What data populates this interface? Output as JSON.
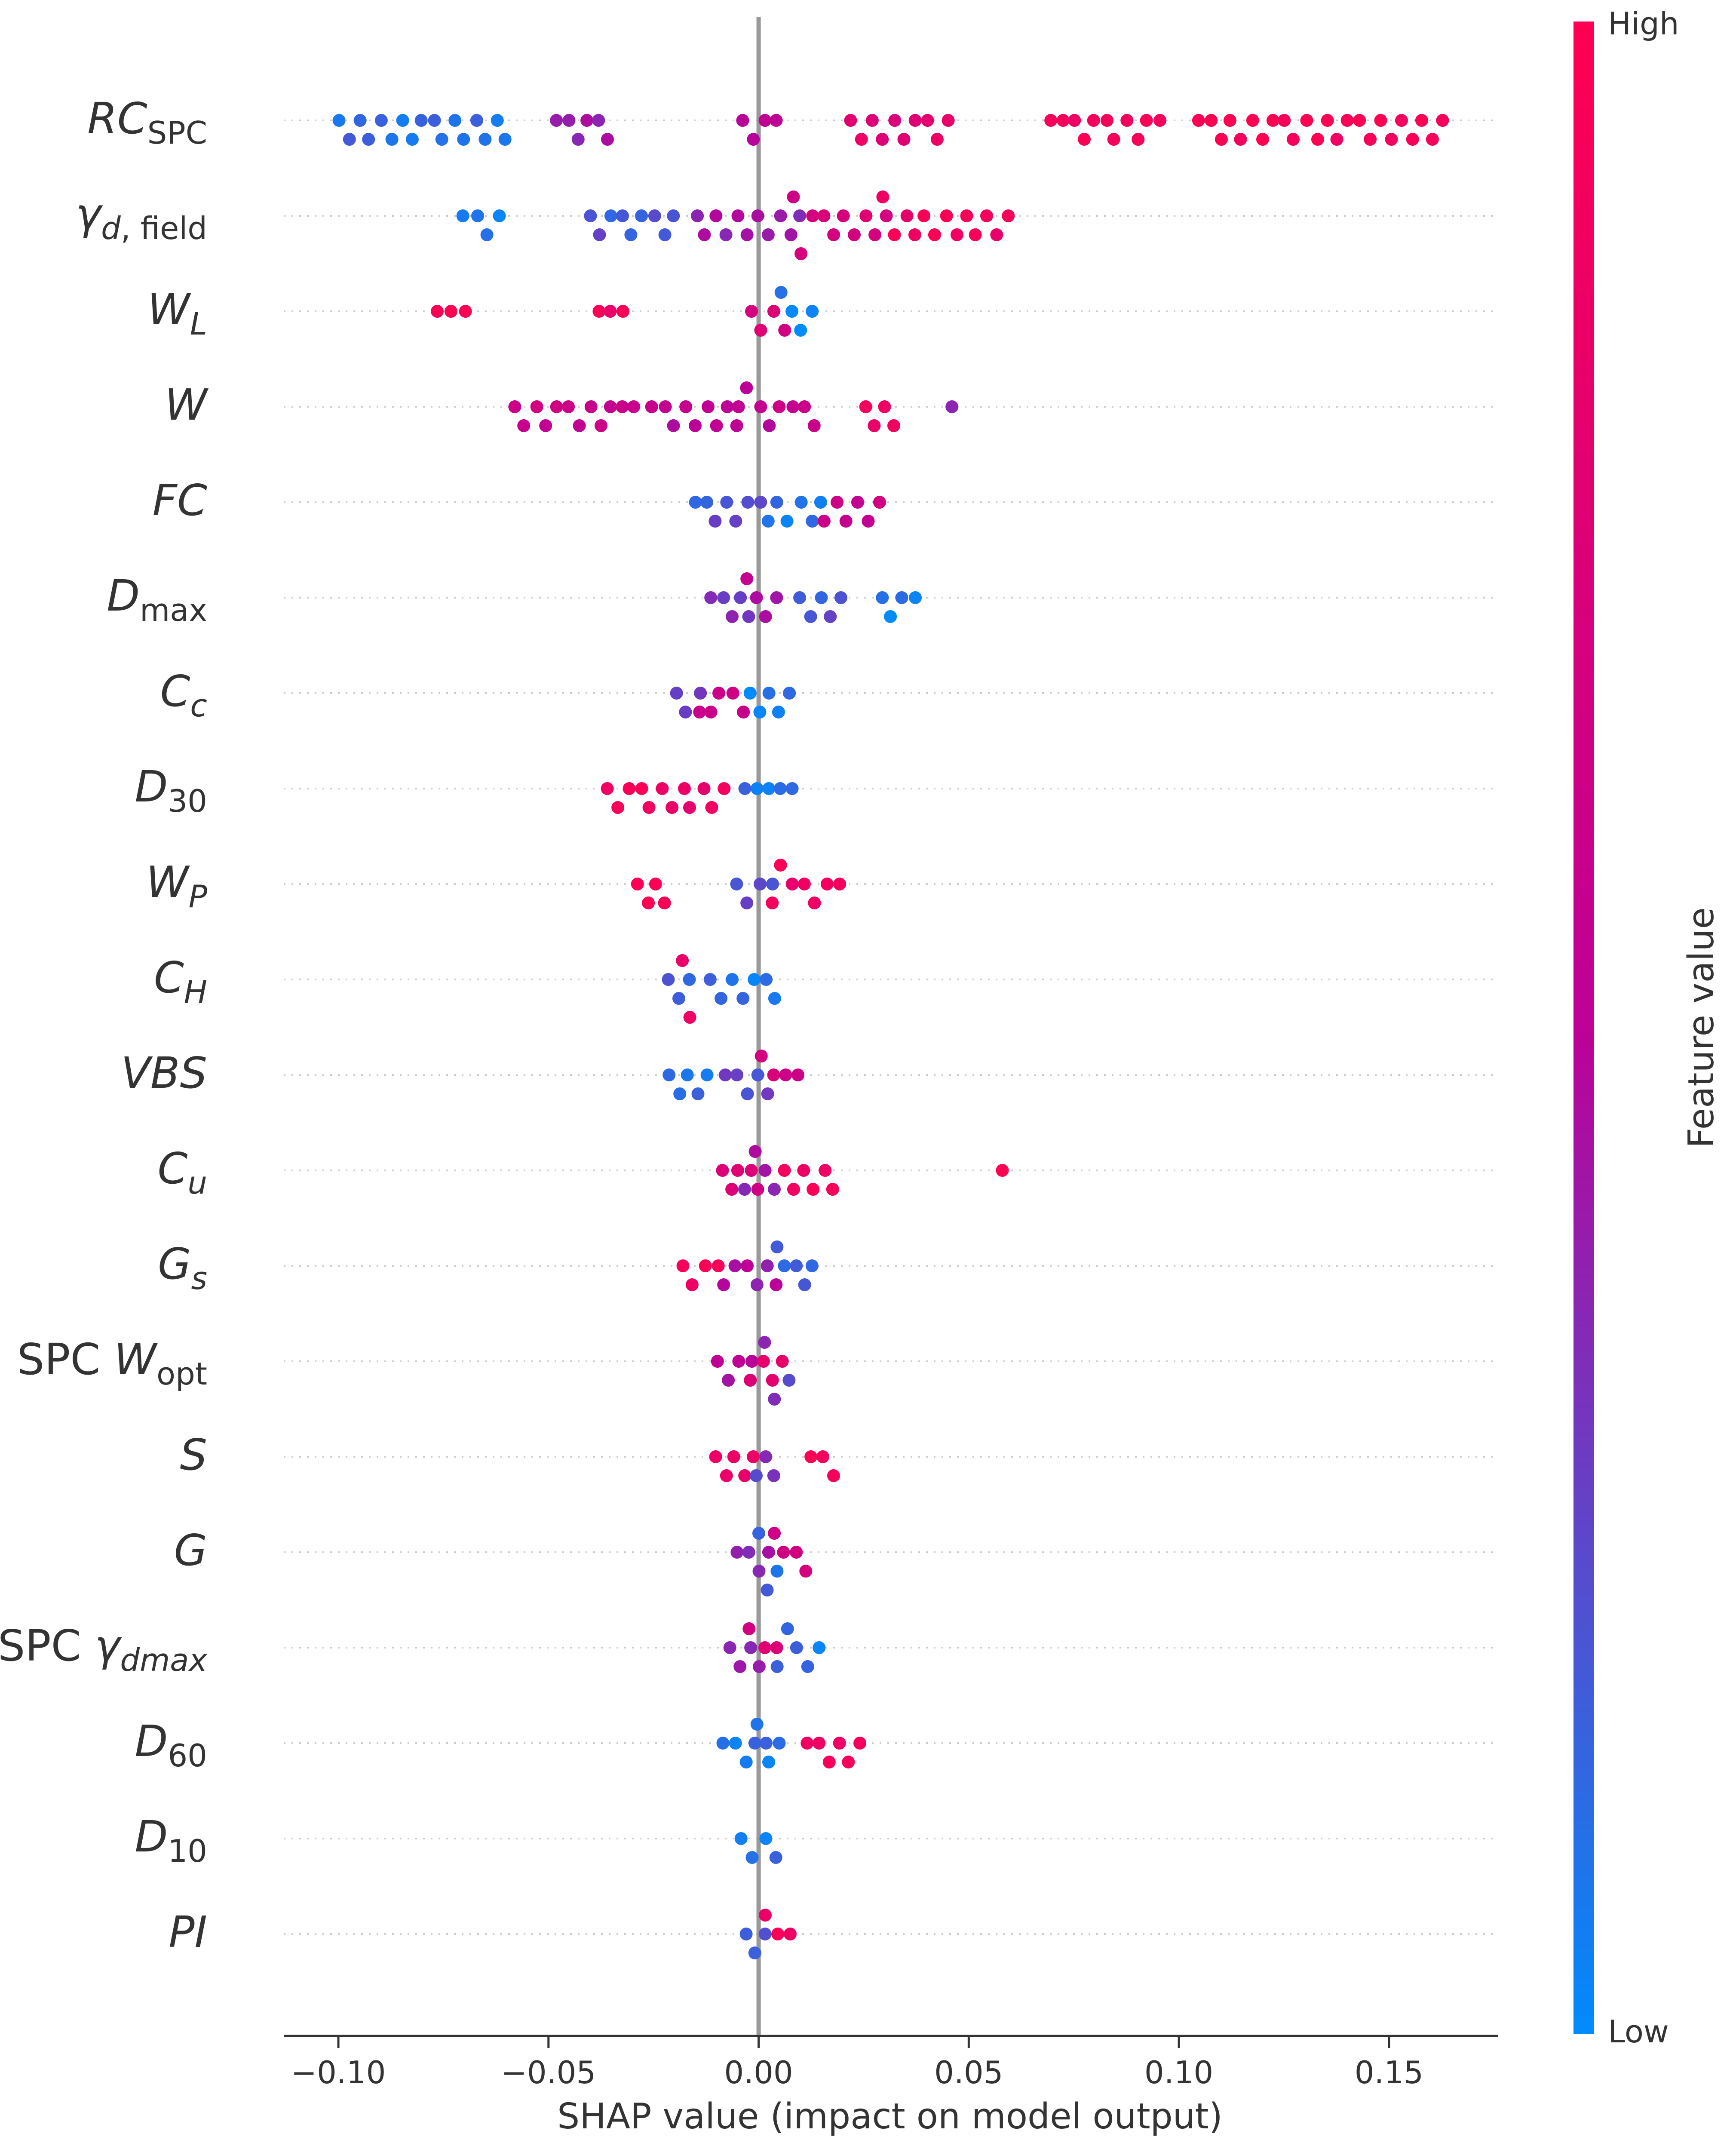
{
  "chart_data": {
    "type": "scatter",
    "subtype": "shap-beeswarm",
    "xlabel": "SHAP value (impact on model output)",
    "xlim": [
      -0.113,
      0.176
    ],
    "xticks": [
      -0.1,
      -0.05,
      0.0,
      0.05,
      0.1,
      0.15
    ],
    "xtick_labels": [
      "−0.10",
      "−0.05",
      "0.00",
      "0.05",
      "0.10",
      "0.15"
    ],
    "colorbar": {
      "title": "Feature value",
      "high_label": "High",
      "low_label": "Low",
      "low_color": "#008bfb",
      "mid_color": "#bd0097",
      "high_color": "#ff0052"
    },
    "features": [
      {
        "name": "RC_SPC",
        "main": "RC",
        "sub": "SPC",
        "ranges": [
          [
            -0.1,
            -0.06,
            0.1
          ],
          [
            -0.048,
            -0.036,
            0.4
          ],
          [
            -0.004,
            0.004,
            0.55
          ],
          [
            0.022,
            0.045,
            0.8
          ],
          [
            0.07,
            0.095,
            0.92
          ],
          [
            0.105,
            0.163,
            0.96
          ]
        ]
      },
      {
        "name": "gamma_d,field",
        "main": "γ",
        "sub": "d, field",
        "ranges": [
          [
            -0.07,
            -0.062,
            0.05
          ],
          [
            -0.04,
            -0.02,
            0.2
          ],
          [
            -0.015,
            0.01,
            0.4
          ],
          [
            0.008,
            0.03,
            0.7
          ],
          [
            0.03,
            0.059,
            0.9
          ]
        ]
      },
      {
        "name": "W_L",
        "main": "W",
        "sub": "L",
        "ranges": [
          [
            -0.076,
            -0.07,
            0.95
          ],
          [
            -0.038,
            -0.032,
            0.9
          ],
          [
            -0.002,
            0.006,
            0.7
          ],
          [
            0.005,
            0.013,
            0.05
          ]
        ]
      },
      {
        "name": "W",
        "main": "W",
        "sub": "",
        "ranges": [
          [
            -0.058,
            -0.03,
            0.6
          ],
          [
            -0.025,
            -0.005,
            0.5
          ],
          [
            -0.005,
            0.013,
            0.55
          ],
          [
            0.025,
            0.032,
            0.9
          ],
          [
            0.046,
            0.046,
            0.3
          ]
        ]
      },
      {
        "name": "FC",
        "main": "FC",
        "sub": "",
        "ranges": [
          [
            -0.015,
            0.0,
            0.2
          ],
          [
            0.002,
            0.015,
            0.1
          ],
          [
            0.016,
            0.029,
            0.6
          ]
        ]
      },
      {
        "name": "D_max",
        "main": "D",
        "sub": "max",
        "ranges": [
          [
            -0.011,
            -0.002,
            0.35
          ],
          [
            -0.003,
            0.004,
            0.5
          ],
          [
            0.01,
            0.02,
            0.2
          ],
          [
            0.029,
            0.037,
            0.05
          ]
        ]
      },
      {
        "name": "C_c",
        "main": "C",
        "sub": "c",
        "ranges": [
          [
            -0.02,
            -0.014,
            0.3
          ],
          [
            -0.014,
            -0.004,
            0.6
          ],
          [
            -0.002,
            0.007,
            0.05
          ]
        ]
      },
      {
        "name": "D_30",
        "main": "D",
        "sub": "30",
        "ranges": [
          [
            -0.036,
            -0.018,
            0.9
          ],
          [
            -0.016,
            -0.008,
            0.85
          ],
          [
            -0.003,
            0.008,
            0.08
          ]
        ]
      },
      {
        "name": "W_P",
        "main": "W",
        "sub": "P",
        "ranges": [
          [
            -0.029,
            -0.022,
            0.95
          ],
          [
            -0.005,
            0.003,
            0.2
          ],
          [
            0.003,
            0.019,
            0.9
          ]
        ]
      },
      {
        "name": "C_H",
        "main": "C",
        "sub": "H",
        "ranges": [
          [
            -0.021,
            -0.016,
            0.15
          ],
          [
            -0.018,
            -0.016,
            0.9
          ],
          [
            -0.012,
            -0.004,
            0.15
          ],
          [
            -0.001,
            0.004,
            0.05
          ]
        ]
      },
      {
        "name": "VBS",
        "main": "VBS",
        "sub": "",
        "ranges": [
          [
            -0.021,
            -0.012,
            0.1
          ],
          [
            -0.008,
            0.002,
            0.25
          ],
          [
            0.001,
            0.009,
            0.65
          ]
        ]
      },
      {
        "name": "C_u",
        "main": "C",
        "sub": "u",
        "ranges": [
          [
            -0.009,
            0.0,
            0.7
          ],
          [
            -0.003,
            0.004,
            0.4
          ],
          [
            0.006,
            0.018,
            0.9
          ],
          [
            0.058,
            0.058,
            0.95
          ]
        ]
      },
      {
        "name": "G_s",
        "main": "G",
        "sub": "s",
        "ranges": [
          [
            -0.018,
            -0.01,
            0.9
          ],
          [
            -0.008,
            0.004,
            0.45
          ],
          [
            0.004,
            0.013,
            0.15
          ]
        ]
      },
      {
        "name": "SPC W_opt",
        "prefix": "SPC ",
        "main": "W",
        "sub": "opt",
        "ranges": [
          [
            -0.01,
            -0.002,
            0.45
          ],
          [
            -0.002,
            0.006,
            0.8
          ],
          [
            0.001,
            0.007,
            0.3
          ]
        ]
      },
      {
        "name": "S",
        "main": "S",
        "sub": "",
        "ranges": [
          [
            -0.01,
            -0.001,
            0.85
          ],
          [
            -0.001,
            0.004,
            0.3
          ],
          [
            0.012,
            0.018,
            0.95
          ]
        ]
      },
      {
        "name": "G",
        "main": "G",
        "sub": "",
        "ranges": [
          [
            -0.005,
            0.002,
            0.4
          ],
          [
            0.0,
            0.004,
            0.1
          ],
          [
            0.004,
            0.011,
            0.7
          ]
        ]
      },
      {
        "name": "SPC gamma_dmax",
        "prefix": "SPC ",
        "main": "γ",
        "sub": "dmax",
        "ranges": [
          [
            -0.007,
            0.0,
            0.4
          ],
          [
            -0.002,
            0.004,
            0.75
          ],
          [
            0.004,
            0.014,
            0.1
          ]
        ]
      },
      {
        "name": "D_60",
        "main": "D",
        "sub": "60",
        "ranges": [
          [
            -0.008,
            0.002,
            0.1
          ],
          [
            0.0,
            0.005,
            0.08
          ],
          [
            0.012,
            0.024,
            0.92
          ]
        ]
      },
      {
        "name": "D_10",
        "main": "D",
        "sub": "10",
        "ranges": [
          [
            -0.004,
            0.004,
            0.08
          ]
        ]
      },
      {
        "name": "PI",
        "main": "PI",
        "sub": "",
        "ranges": [
          [
            -0.003,
            0.002,
            0.15
          ],
          [
            0.002,
            0.008,
            0.9
          ]
        ]
      }
    ]
  }
}
